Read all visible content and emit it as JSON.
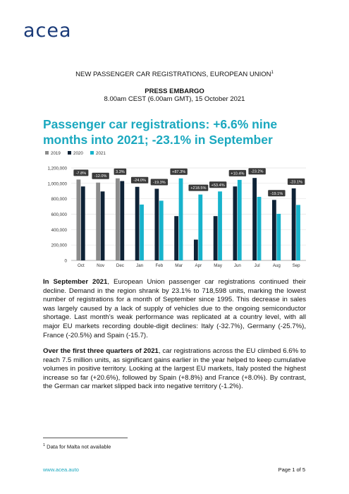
{
  "logo": "acea",
  "header": {
    "line1": "NEW PASSENGER CAR REGISTRATIONS, EUROPEAN UNION",
    "line1_sup": "1",
    "embargo": "PRESS EMBARGO",
    "time": "8.00am CEST (6.00am GMT), 15 October 2021"
  },
  "title": "Passenger car registrations: +6.6% nine months into 2021; -23.1% in September",
  "chart_data": {
    "type": "bar",
    "categories": [
      "Oct",
      "Nov",
      "Dec",
      "Jan",
      "Feb",
      "Mar",
      "Apr",
      "May",
      "Jun",
      "Jul",
      "Aug",
      "Sep"
    ],
    "series": [
      {
        "name": "2019",
        "values": [
          1050000,
          1010000,
          1065000,
          null,
          null,
          null,
          null,
          null,
          null,
          null,
          null,
          null
        ]
      },
      {
        "name": "2020",
        "values": [
          960000,
          895000,
          1030000,
          955000,
          930000,
          575000,
          270000,
          575000,
          960000,
          1070000,
          785000,
          935000
        ]
      },
      {
        "name": "2021",
        "values": [
          null,
          null,
          null,
          725000,
          775000,
          1065000,
          855000,
          895000,
          1045000,
          825000,
          605000,
          720000
        ]
      }
    ],
    "labels": [
      "-7.8%",
      "-12.0%",
      "3.3%",
      "-24.0%",
      "-19.3%",
      "+87.3%",
      "+218.5%",
      "+53.4%",
      "+10.4%",
      "-23.2%",
      "-19.1%",
      "-23.1%"
    ],
    "yticks": [
      "0",
      "200,000",
      "400,000",
      "600,000",
      "800,000",
      "1,000,000",
      "1,200,000"
    ],
    "ylim": [
      0,
      1200000
    ],
    "colors": {
      "2019": "#8c8c8c",
      "2020": "#0e2236",
      "2021": "#17b3cc"
    },
    "legend": "top-left",
    "grid": true
  },
  "paragraphs": [
    {
      "lead": "In September 2021",
      "text": ", European Union passenger car registrations continued their decline. Demand in the region shrank by 23.1% to 718,598 units, marking the lowest number of registrations for a month of September since 1995. This decrease in sales was largely caused by a lack of supply of vehicles due to the ongoing semiconductor shortage. Last month’s weak performance was replicated at a country level, with all major EU markets recording double-digit declines: Italy (-32.7%), Germany (-25.7%), France (-20.5%) and Spain (-15.7)."
    },
    {
      "lead": "Over the first three quarters of 2021",
      "text": ", car registrations across the EU climbed 6.6% to reach 7.5 million units, as significant gains earlier in the year helped to keep cumulative volumes in positive territory. Looking at the largest EU markets, Italy posted the highest increase so far (+20.6%), followed by Spain (+8.8%) and France (+8.0%). By contrast, the German car market slipped back into negative territory (-1.2%)."
    }
  ],
  "footnote": {
    "mark": "1",
    "text": "Data for Malta not available"
  },
  "footer": {
    "url": "www.acea.auto",
    "page": "Page 1 of 5"
  }
}
